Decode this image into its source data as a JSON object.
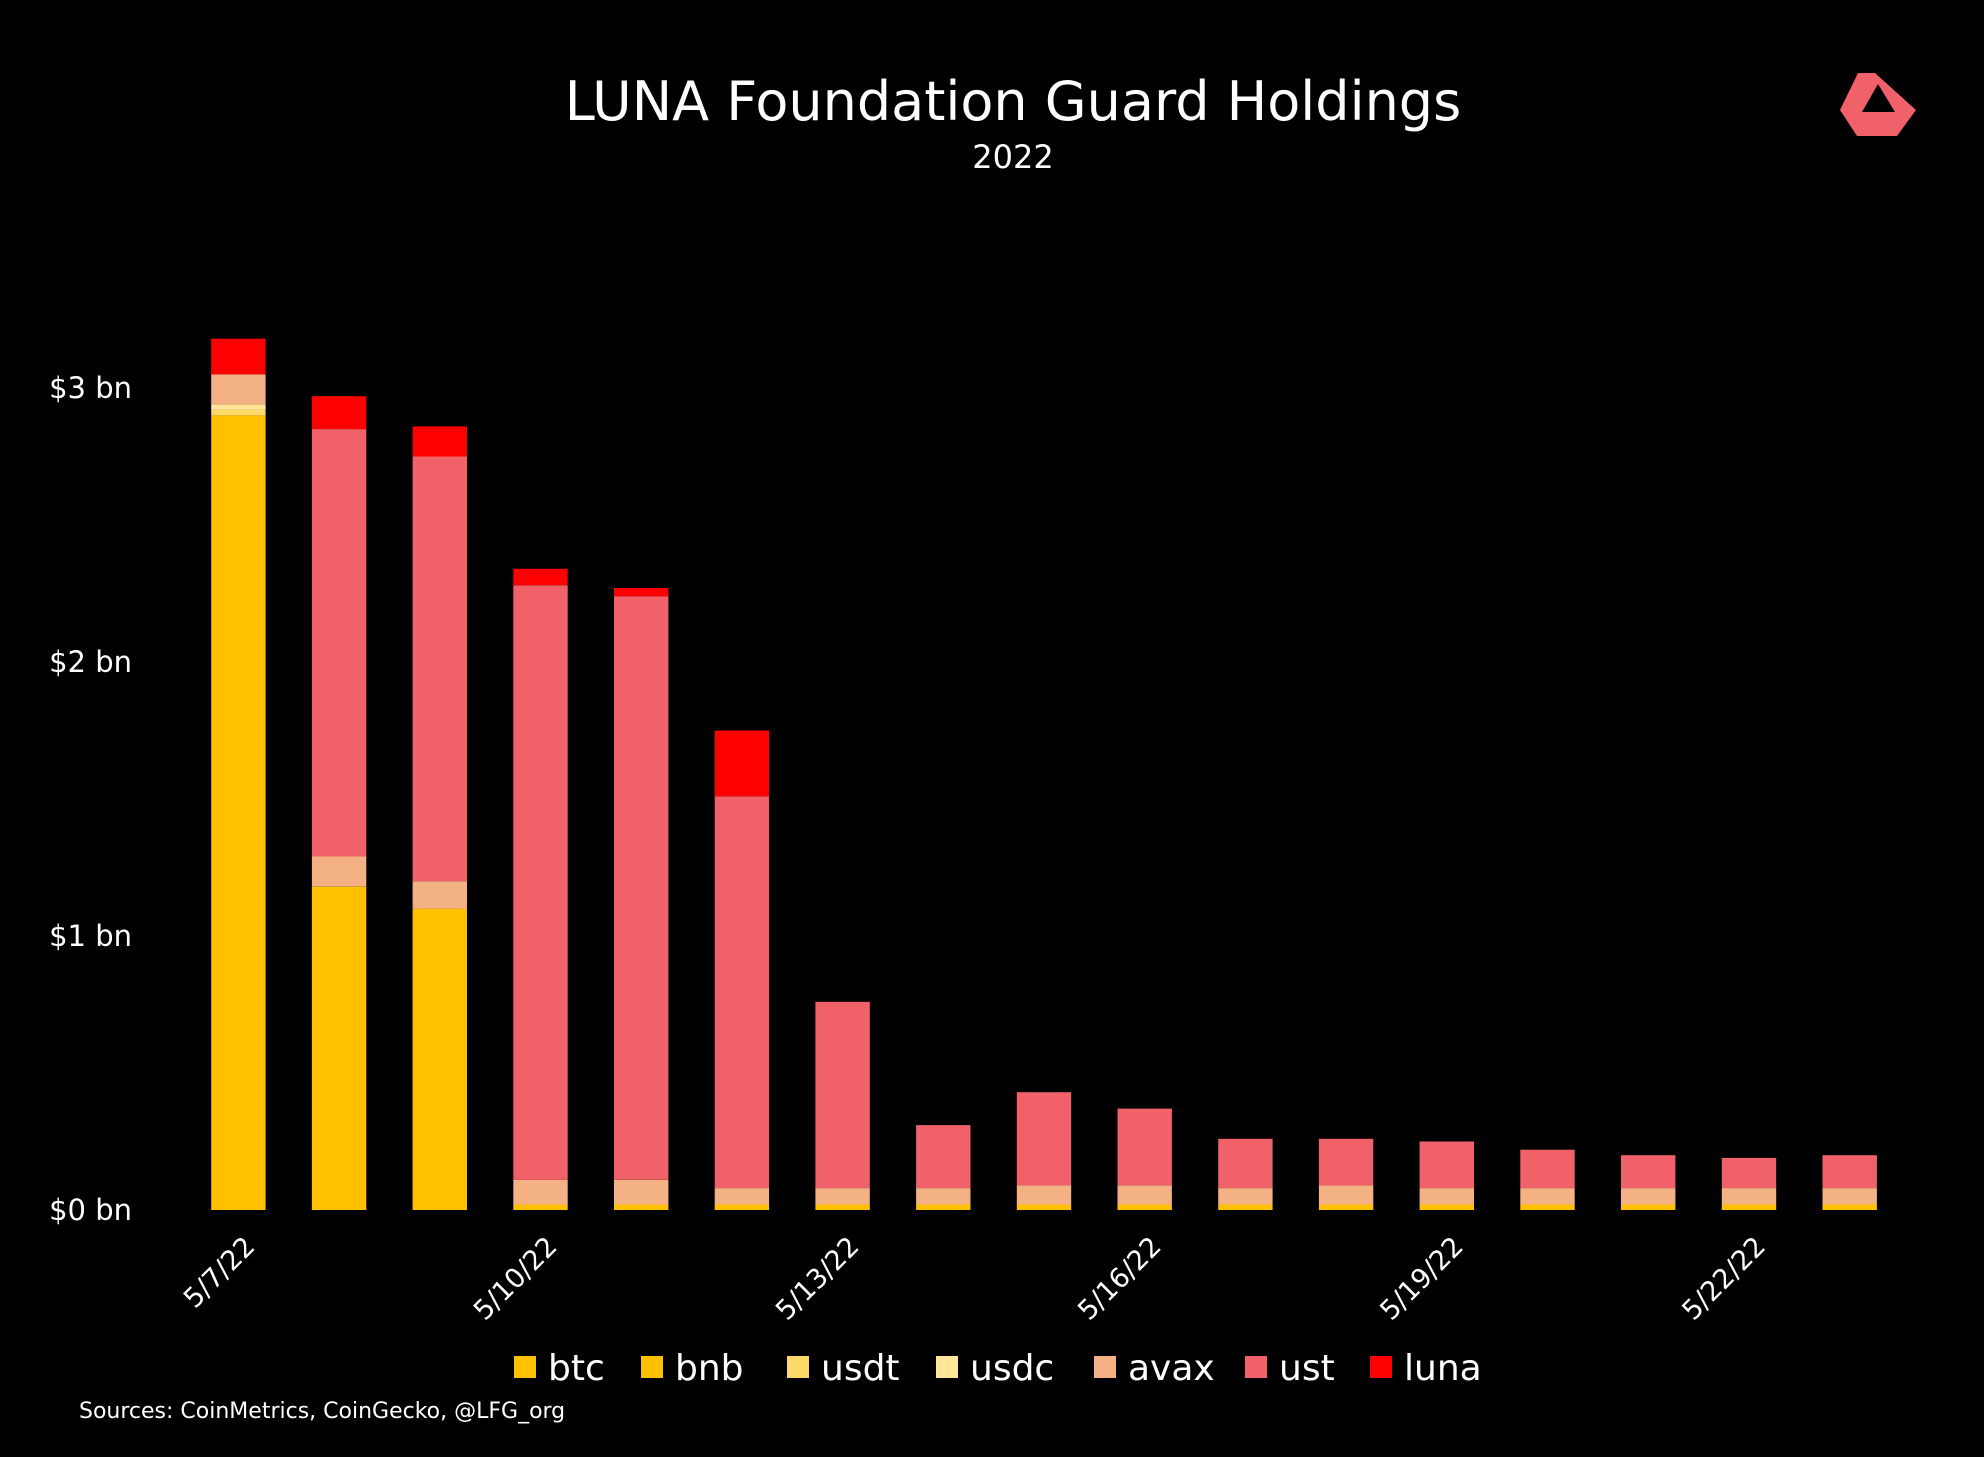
{
  "logo": {
    "name": "brand-logo",
    "color": "#f0616a"
  },
  "chart_data": {
    "type": "bar",
    "stacked": true,
    "title": "LUNA Foundation Guard Holdings",
    "subtitle": "2022",
    "ylabel": "",
    "xlabel": "",
    "ylim": [
      0,
      3.5
    ],
    "grid": false,
    "legend_position": "bottom",
    "yticks": [
      {
        "value": 0,
        "label": "$0 bn"
      },
      {
        "value": 1,
        "label": "$1 bn"
      },
      {
        "value": 2,
        "label": "$2 bn"
      },
      {
        "value": 3,
        "label": "$3 bn"
      }
    ],
    "categories": [
      "5/7/22",
      "5/8/22",
      "5/9/22",
      "5/10/22",
      "5/11/22",
      "5/12/22",
      "5/13/22",
      "5/14/22",
      "5/15/22",
      "5/16/22",
      "5/17/22",
      "5/18/22",
      "5/19/22",
      "5/20/22",
      "5/21/22",
      "5/22/22",
      "5/23/22"
    ],
    "xtick_labels": [
      "5/7/22",
      "",
      "",
      "5/10/22",
      "",
      "",
      "5/13/22",
      "",
      "",
      "5/16/22",
      "",
      "",
      "5/19/22",
      "",
      "",
      "5/22/22",
      ""
    ],
    "series": [
      {
        "name": "btc",
        "color": "#ffc000",
        "values": [
          2.9,
          1.18,
          1.1,
          0.02,
          0.02,
          0.02,
          0.02,
          0.02,
          0.02,
          0.02,
          0.02,
          0.02,
          0.02,
          0.02,
          0.02,
          0.02,
          0.02
        ]
      },
      {
        "name": "bnb",
        "color": "#ffc000",
        "values": [
          0.0,
          0.0,
          0.0,
          0.0,
          0.0,
          0.0,
          0.0,
          0.0,
          0.0,
          0.0,
          0.0,
          0.0,
          0.0,
          0.0,
          0.0,
          0.0,
          0.0
        ]
      },
      {
        "name": "usdt",
        "color": "#ffd966",
        "values": [
          0.02,
          0.0,
          0.0,
          0.0,
          0.0,
          0.0,
          0.0,
          0.0,
          0.0,
          0.0,
          0.0,
          0.0,
          0.0,
          0.0,
          0.0,
          0.0,
          0.0
        ]
      },
      {
        "name": "usdc",
        "color": "#ffe699",
        "values": [
          0.02,
          0.0,
          0.0,
          0.0,
          0.0,
          0.0,
          0.0,
          0.0,
          0.0,
          0.0,
          0.0,
          0.0,
          0.0,
          0.0,
          0.0,
          0.0,
          0.0
        ]
      },
      {
        "name": "avax",
        "color": "#f4b183",
        "values": [
          0.11,
          0.11,
          0.1,
          0.09,
          0.09,
          0.06,
          0.06,
          0.06,
          0.07,
          0.07,
          0.06,
          0.07,
          0.06,
          0.06,
          0.06,
          0.06,
          0.06
        ]
      },
      {
        "name": "ust",
        "color": "#f0616a",
        "values": [
          0.0,
          1.56,
          1.55,
          2.17,
          2.13,
          1.43,
          0.68,
          0.23,
          0.34,
          0.28,
          0.18,
          0.17,
          0.17,
          0.14,
          0.12,
          0.11,
          0.12
        ]
      },
      {
        "name": "luna",
        "color": "#ff0000",
        "values": [
          0.13,
          0.12,
          0.11,
          0.06,
          0.03,
          0.24,
          0.0,
          0.0,
          0.0,
          0.0,
          0.0,
          0.0,
          0.0,
          0.0,
          0.0,
          0.0,
          0.0
        ]
      }
    ],
    "source": "Sources: CoinMetrics, CoinGecko, @LFG_org"
  }
}
